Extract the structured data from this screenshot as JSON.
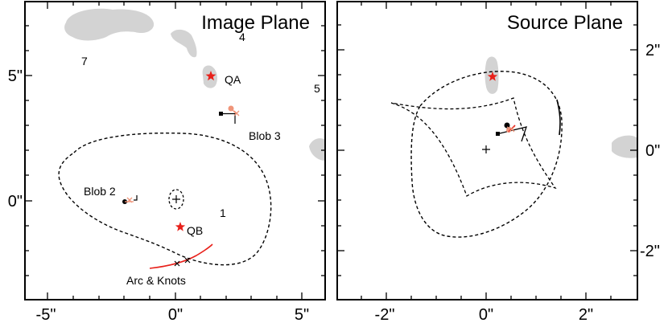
{
  "panels": {
    "image": {
      "title": "Image Plane",
      "x_ticks": [
        "-5\"",
        "0\"",
        "5\""
      ],
      "y_ticks": [
        "5\"",
        "0\""
      ],
      "labels": {
        "qa": "QA",
        "qb": "QB",
        "blob2": "Blob 2",
        "blob3": "Blob 3",
        "arc": "Arc & Knots",
        "n1": "1",
        "n4": "4",
        "n5": "5",
        "n7": "7"
      }
    },
    "source": {
      "title": "Source Plane",
      "x_ticks": [
        "-2\"",
        "0\"",
        "2\""
      ],
      "y_ticks": [
        "2\"",
        "0\"",
        "-2\""
      ]
    }
  },
  "colors": {
    "quasar_star": "#e8201a",
    "arc": "#e8201a",
    "blob_salmon": "#f0957a",
    "galaxy_fill": "#d3d3d3",
    "frame": "#000000"
  }
}
